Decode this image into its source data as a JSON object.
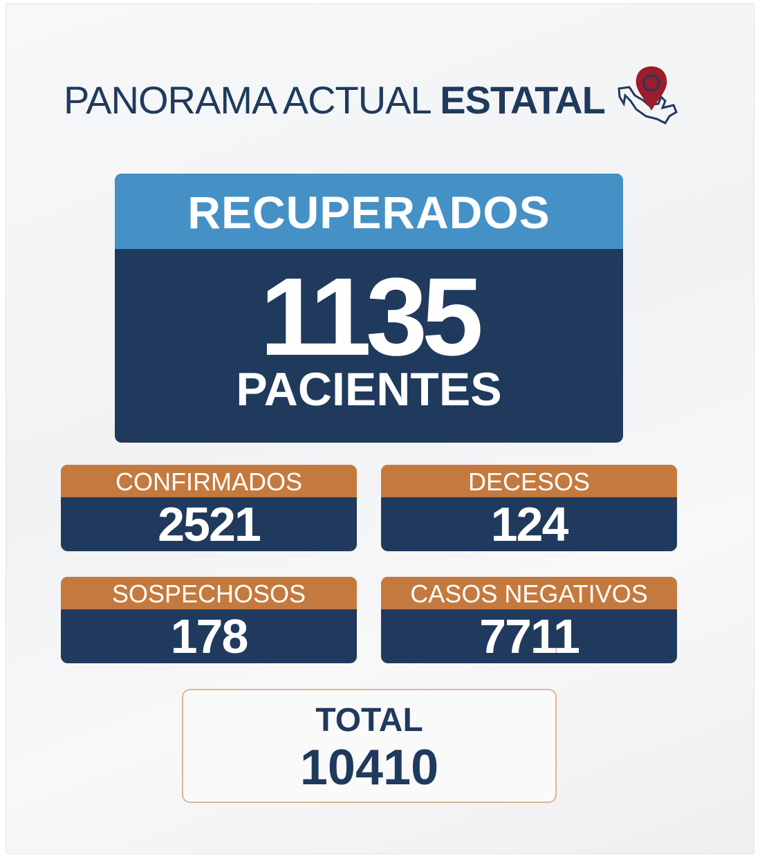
{
  "title": {
    "light": "PANORAMA ACTUAL ",
    "bold": "ESTATAL",
    "icon": "mexico-map-pin-icon"
  },
  "recuperados": {
    "label": "RECUPERADOS",
    "value": "1135",
    "unit": "PACIENTES"
  },
  "stats": [
    {
      "label": "CONFIRMADOS",
      "value": "2521"
    },
    {
      "label": "DECESOS",
      "value": "124"
    },
    {
      "label": "SOSPECHOSOS",
      "value": "178"
    },
    {
      "label": "CASOS NEGATIVOS",
      "value": "7711"
    }
  ],
  "total": {
    "label": "TOTAL",
    "value": "10410"
  },
  "colors": {
    "navy": "#1f3a5c",
    "blue": "#4591c5",
    "orange": "#c47a3e",
    "pin": "#9b1c2a"
  }
}
